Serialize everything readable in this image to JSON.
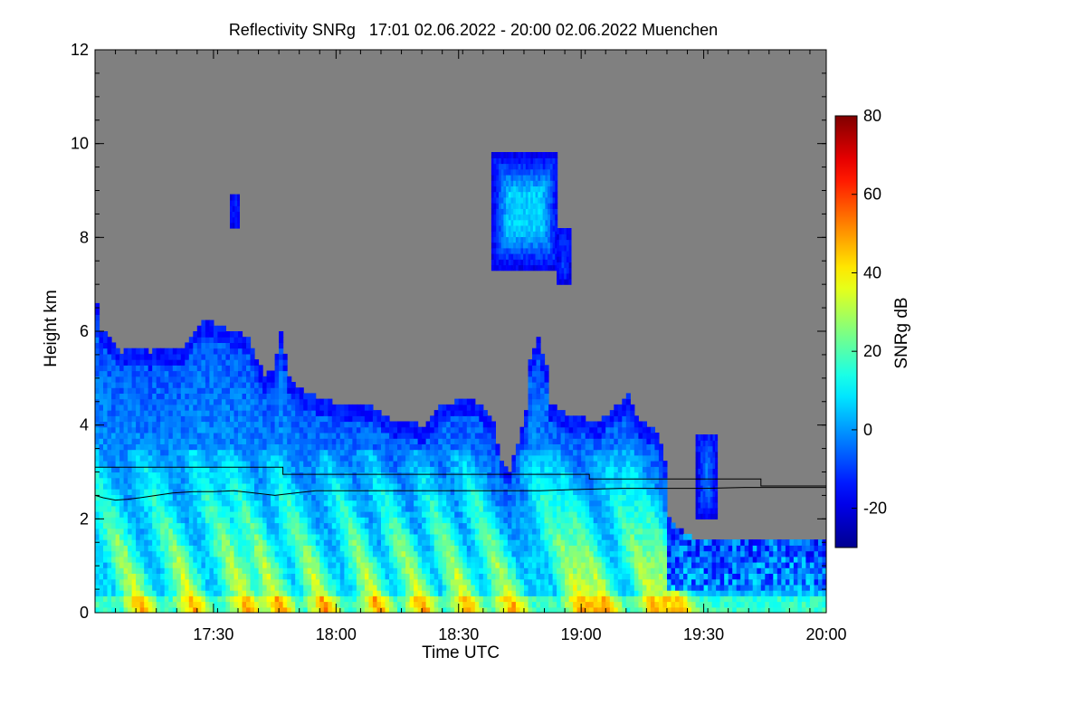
{
  "chart_data": {
    "type": "heatmap",
    "title": "Reflectivity SNRg   17:01 02.06.2022 - 20:00 02.06.2022 Muenchen",
    "xlabel": "Time UTC",
    "ylabel": "Height km",
    "colorbar_label": "SNRg dB",
    "background_color": "#808080",
    "x_range_minutes_utc": [
      1021,
      1200
    ],
    "x_ticks": [
      {
        "value": 1050,
        "label": "17:30"
      },
      {
        "value": 1080,
        "label": "18:00"
      },
      {
        "value": 1110,
        "label": "18:30"
      },
      {
        "value": 1140,
        "label": "19:00"
      },
      {
        "value": 1170,
        "label": "19:30"
      },
      {
        "value": 1200,
        "label": "20:00"
      }
    ],
    "y_range_km": [
      0,
      12
    ],
    "y_ticks": [
      {
        "value": 0,
        "label": "0"
      },
      {
        "value": 2,
        "label": "2"
      },
      {
        "value": 4,
        "label": "4"
      },
      {
        "value": 6,
        "label": "6"
      },
      {
        "value": 8,
        "label": "8"
      },
      {
        "value": 10,
        "label": "10"
      },
      {
        "value": 12,
        "label": "12"
      }
    ],
    "colorbar_range_db": [
      -30,
      80
    ],
    "colorbar_ticks": [
      {
        "value": -20,
        "label": "-20"
      },
      {
        "value": 0,
        "label": "0"
      },
      {
        "value": 20,
        "label": "20"
      },
      {
        "value": 40,
        "label": "40"
      },
      {
        "value": 60,
        "label": "60"
      },
      {
        "value": 80,
        "label": "80"
      }
    ],
    "colormap": [
      "#00008f",
      "#0000ff",
      "#0080ff",
      "#00ffff",
      "#80ff80",
      "#ffff00",
      "#ff8000",
      "#ff0000",
      "#800000"
    ],
    "upper_boundary_km": [
      [
        1021,
        6.5
      ],
      [
        1022,
        6.0
      ],
      [
        1024,
        5.8
      ],
      [
        1027,
        5.5
      ],
      [
        1030,
        5.6
      ],
      [
        1034,
        5.5
      ],
      [
        1038,
        5.6
      ],
      [
        1042,
        5.6
      ],
      [
        1045,
        6.0
      ],
      [
        1047,
        6.2
      ],
      [
        1050,
        6.1
      ],
      [
        1053,
        6.0
      ],
      [
        1056,
        5.9
      ],
      [
        1058,
        5.8
      ],
      [
        1060,
        5.4
      ],
      [
        1062,
        5.0
      ],
      [
        1064,
        5.1
      ],
      [
        1066,
        5.9
      ],
      [
        1068,
        5.0
      ],
      [
        1070,
        4.8
      ],
      [
        1073,
        4.6
      ],
      [
        1076,
        4.5
      ],
      [
        1080,
        4.4
      ],
      [
        1083,
        4.4
      ],
      [
        1086,
        4.4
      ],
      [
        1089,
        4.3
      ],
      [
        1092,
        4.1
      ],
      [
        1095,
        4.0
      ],
      [
        1098,
        4.0
      ],
      [
        1101,
        3.9
      ],
      [
        1104,
        4.3
      ],
      [
        1107,
        4.4
      ],
      [
        1110,
        4.5
      ],
      [
        1113,
        4.5
      ],
      [
        1116,
        4.3
      ],
      [
        1118,
        4.0
      ],
      [
        1120,
        3.2
      ],
      [
        1122,
        3.0
      ],
      [
        1124,
        3.6
      ],
      [
        1126,
        4.3
      ],
      [
        1127,
        5.3
      ],
      [
        1129,
        5.8
      ],
      [
        1131,
        5.2
      ],
      [
        1132,
        4.4
      ],
      [
        1134,
        4.3
      ],
      [
        1137,
        4.1
      ],
      [
        1140,
        4.1
      ],
      [
        1143,
        4.0
      ],
      [
        1146,
        4.2
      ],
      [
        1149,
        4.4
      ],
      [
        1151,
        4.6
      ],
      [
        1153,
        4.1
      ],
      [
        1156,
        3.9
      ],
      [
        1158,
        3.8
      ],
      [
        1160,
        3.2
      ],
      [
        1161,
        2.0
      ],
      [
        1165,
        1.6
      ],
      [
        1170,
        1.5
      ],
      [
        1176,
        1.5
      ],
      [
        1182,
        1.5
      ],
      [
        1188,
        1.5
      ],
      [
        1194,
        1.5
      ],
      [
        1200,
        1.5
      ]
    ],
    "high_cloud_outlines_km": [
      {
        "t_start": 1054,
        "t_end": 1056,
        "top_km": 8.9,
        "bottom_km": 8.2
      },
      {
        "t_start": 1118,
        "t_end": 1134,
        "top_km": 9.7,
        "bottom_km": 7.3
      },
      {
        "t_start": 1134,
        "t_end": 1137,
        "top_km": 8.1,
        "bottom_km": 7.0
      },
      {
        "t_start": 1168,
        "t_end": 1173,
        "top_km": 3.8,
        "bottom_km": 2.0
      }
    ],
    "precipitation_streak_times_min": [
      1032,
      1045,
      1058,
      1066,
      1077,
      1090,
      1101,
      1112,
      1123,
      1140,
      1146,
      1158,
      1164
    ],
    "black_line_upper_km": [
      [
        1021,
        3.1
      ],
      [
        1067,
        3.1
      ],
      [
        1067,
        2.95
      ],
      [
        1142,
        2.95
      ],
      [
        1142,
        2.85
      ],
      [
        1184,
        2.85
      ],
      [
        1184,
        2.7
      ],
      [
        1200,
        2.7
      ]
    ],
    "black_line_lower_km": [
      [
        1021,
        2.5
      ],
      [
        1023,
        2.45
      ],
      [
        1026,
        2.4
      ],
      [
        1029,
        2.42
      ],
      [
        1032,
        2.45
      ],
      [
        1036,
        2.5
      ],
      [
        1040,
        2.55
      ],
      [
        1045,
        2.58
      ],
      [
        1050,
        2.58
      ],
      [
        1055,
        2.6
      ],
      [
        1060,
        2.55
      ],
      [
        1065,
        2.5
      ],
      [
        1070,
        2.55
      ],
      [
        1075,
        2.6
      ],
      [
        1080,
        2.6
      ],
      [
        1090,
        2.6
      ],
      [
        1100,
        2.6
      ],
      [
        1110,
        2.6
      ],
      [
        1120,
        2.6
      ],
      [
        1130,
        2.6
      ],
      [
        1140,
        2.63
      ],
      [
        1150,
        2.65
      ],
      [
        1160,
        2.65
      ],
      [
        1170,
        2.65
      ],
      [
        1180,
        2.67
      ],
      [
        1190,
        2.67
      ],
      [
        1200,
        2.67
      ]
    ]
  }
}
